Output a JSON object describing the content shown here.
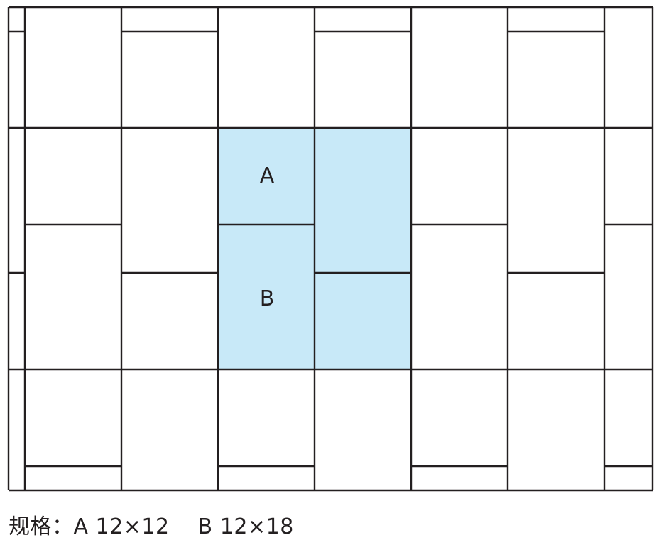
{
  "diagram": {
    "highlight_color": "#c8e9f8",
    "line_color": "#231f20",
    "tile_labels": {
      "a": "A",
      "b": "B"
    }
  },
  "caption": "规格：A 12×12    B 12×18"
}
